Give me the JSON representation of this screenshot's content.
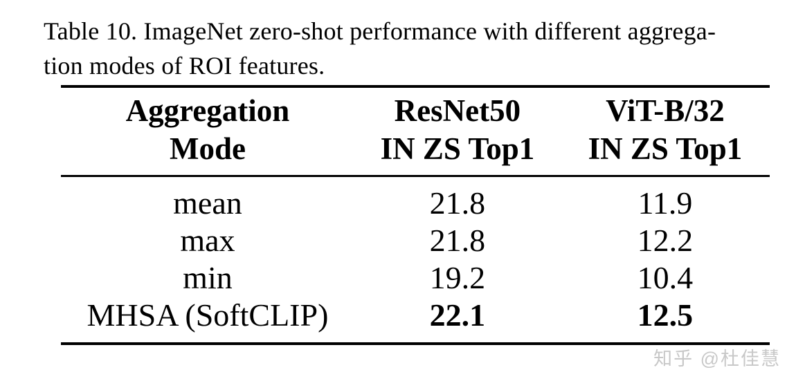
{
  "caption": {
    "line1": "Table 10. ImageNet zero-shot performance with different aggrega-",
    "line2": "tion modes of ROI features."
  },
  "table": {
    "headers": [
      {
        "line1": "Aggregation",
        "line2": "Mode"
      },
      {
        "line1": "ResNet50",
        "line2": "IN ZS Top1"
      },
      {
        "line1": "ViT-B/32",
        "line2": "IN ZS Top1"
      }
    ],
    "rows": [
      {
        "mode": "mean",
        "resnet50": "21.8",
        "vitb32": "11.9"
      },
      {
        "mode": "max",
        "resnet50": "21.8",
        "vitb32": "12.2"
      },
      {
        "mode": "min",
        "resnet50": "19.2",
        "vitb32": "10.4"
      },
      {
        "mode": "MHSA (SoftCLIP)",
        "resnet50": "22.1",
        "vitb32": "12.5"
      }
    ]
  },
  "watermark": {
    "text": "知乎 @杜佳慧"
  },
  "colors": {
    "background": "#ffffff",
    "text": "#000000",
    "rule": "#000000",
    "watermark": "#c8c8c8"
  }
}
